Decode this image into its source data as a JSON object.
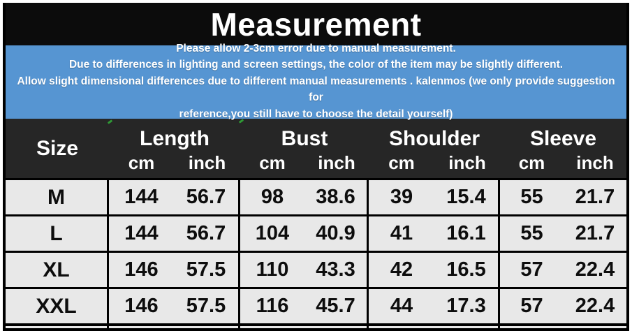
{
  "title": "Measurement",
  "disclaimer": {
    "lines": [
      "Please allow 2-3cm error due to manual measurement.",
      "Due to differences in lighting and screen settings, the color of the item may be slightly different.",
      "Allow slight dimensional differences due to different manual measurements . kalenmos (we only provide suggestion for",
      "reference,you still have to choose the detail yourself)"
    ]
  },
  "chart_data": {
    "type": "table",
    "title": "Measurement",
    "size_header": "Size",
    "groups": [
      {
        "label": "Length",
        "units": [
          "cm",
          "inch"
        ]
      },
      {
        "label": "Bust",
        "units": [
          "cm",
          "inch"
        ]
      },
      {
        "label": "Shoulder",
        "units": [
          "cm",
          "inch"
        ]
      },
      {
        "label": "Sleeve",
        "units": [
          "cm",
          "inch"
        ]
      }
    ],
    "rows": [
      {
        "size": "M",
        "values": [
          "144",
          "56.7",
          "98",
          "38.6",
          "39",
          "15.4",
          "55",
          "21.7"
        ]
      },
      {
        "size": "L",
        "values": [
          "144",
          "56.7",
          "104",
          "40.9",
          "41",
          "16.1",
          "55",
          "21.7"
        ]
      },
      {
        "size": "XL",
        "values": [
          "146",
          "57.5",
          "110",
          "43.3",
          "42",
          "16.5",
          "57",
          "22.4"
        ]
      },
      {
        "size": "XXL",
        "values": [
          "146",
          "57.5",
          "116",
          "45.7",
          "44",
          "17.3",
          "57",
          "22.4"
        ]
      }
    ]
  },
  "colors": {
    "banner_blue": "#5695d2",
    "header_dark": "#262626",
    "title_black": "#0c0c0c",
    "row_gray": "#e8e8e8",
    "grid_black": "#000000",
    "tick_green": "#2f9a35"
  }
}
